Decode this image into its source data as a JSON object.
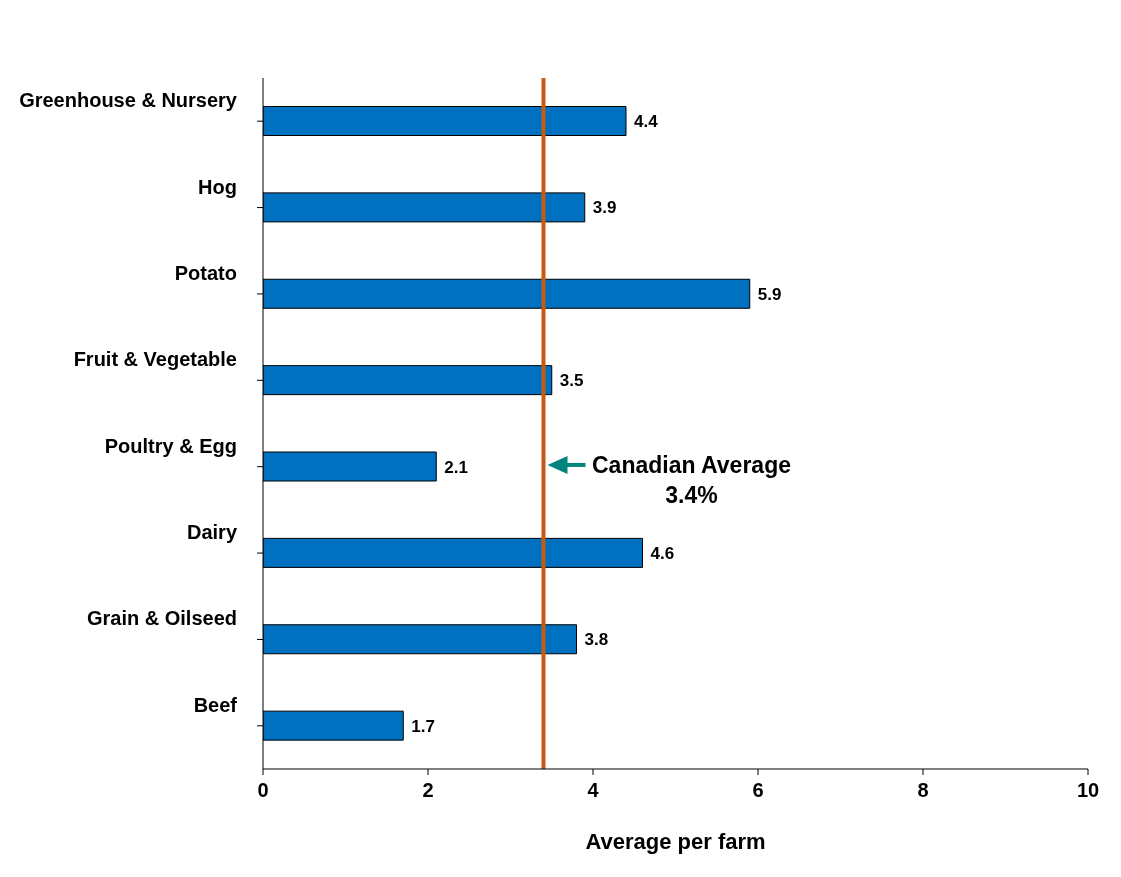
{
  "chart_data": {
    "type": "bar",
    "orientation": "horizontal",
    "categories": [
      "Greenhouse & Nursery",
      "Hog",
      "Potato",
      "Fruit & Vegetable",
      "Poultry & Egg",
      "Dairy",
      "Grain & Oilseed",
      "Beef"
    ],
    "values": [
      4.4,
      3.9,
      5.9,
      3.5,
      2.1,
      4.6,
      3.8,
      1.7
    ],
    "color": "#0070c0",
    "xlim": [
      0,
      10
    ],
    "xticks": [
      0,
      2,
      4,
      6,
      8,
      10
    ],
    "xlabel": "Average per farm",
    "data_labels": true,
    "grid": false,
    "legend": false,
    "ref_lines": [
      {
        "axis": "x",
        "value": 3.4,
        "label": "Canadian Average 3.4%",
        "color": "#c55a11"
      }
    ]
  }
}
